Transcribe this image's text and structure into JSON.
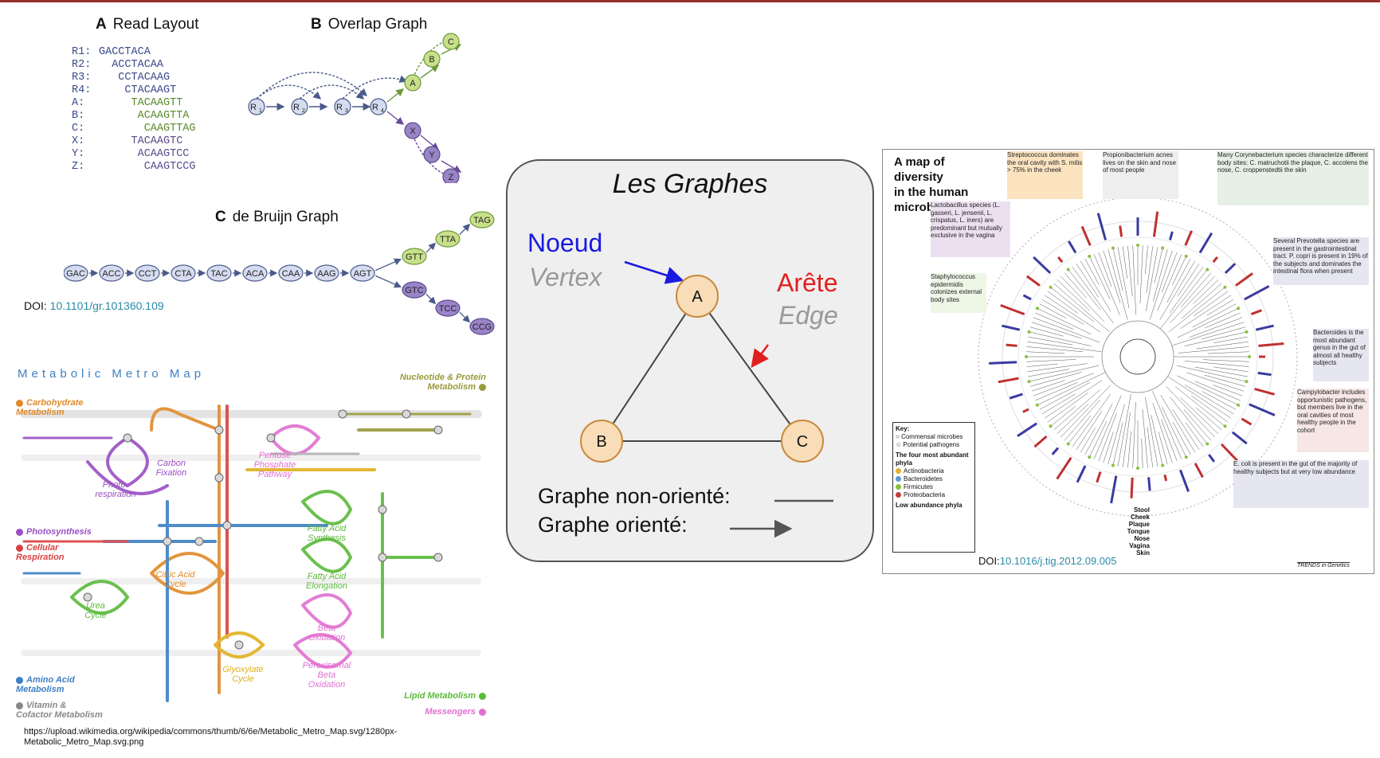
{
  "panel_a": {
    "letter": "A",
    "title": "Read Layout",
    "reads": [
      {
        "key": "R1:",
        "seq": "GACCTACA",
        "indent": 0,
        "color": "#3a4a8a"
      },
      {
        "key": "R2:",
        "seq": "ACCTACAA",
        "indent": 2,
        "color": "#3a4a8a"
      },
      {
        "key": "R3:",
        "seq": "CCTACAAG",
        "indent": 3,
        "color": "#3a4a8a"
      },
      {
        "key": "R4:",
        "seq": "CTACAAGT",
        "indent": 4,
        "color": "#3a4a8a"
      },
      {
        "key": "A:",
        "seq": "TACAAGTT",
        "indent": 5,
        "color": "#5a8a2a"
      },
      {
        "key": "B:",
        "seq": "ACAAGTTA",
        "indent": 6,
        "color": "#5a8a2a"
      },
      {
        "key": "C:",
        "seq": "CAAGTTAG",
        "indent": 7,
        "color": "#5a8a2a"
      },
      {
        "key": "X:",
        "seq": "TACAAGTC",
        "indent": 5,
        "color": "#5a4a8a"
      },
      {
        "key": "Y:",
        "seq": "ACAAGTCC",
        "indent": 6,
        "color": "#5a4a8a"
      },
      {
        "key": "Z:",
        "seq": "CAAGTCCG",
        "indent": 7,
        "color": "#5a4a8a"
      }
    ]
  },
  "panel_b": {
    "letter": "B",
    "title": "Overlap Graph",
    "nodes": [
      "R1",
      "R2",
      "R3",
      "R4",
      "A",
      "B",
      "C",
      "X",
      "Y",
      "Z"
    ]
  },
  "panel_c": {
    "letter": "C",
    "title": "de Bruijn Graph",
    "chain": [
      "GAC",
      "ACC",
      "CCT",
      "CTA",
      "TAC",
      "ACA",
      "CAA",
      "AAG",
      "AGT"
    ],
    "green_branch": [
      "GTT",
      "TTA",
      "TAG"
    ],
    "purple_branch": [
      "GTC",
      "TCC",
      "CCG"
    ]
  },
  "doi_left": {
    "label": "DOI:",
    "value": "10.1101/gr.101360.109"
  },
  "metro": {
    "title": "Metabolic Metro Map",
    "categories_left": [
      {
        "label": "Carbohydrate Metabolism",
        "color": "#e08a2a"
      },
      {
        "label": "Photosynthesis",
        "color": "#9a4fc4"
      },
      {
        "label": "Cellular Respiration",
        "color": "#d94040"
      },
      {
        "label": "Amino Acid Metabolism",
        "color": "#3d7fc4"
      },
      {
        "label": "Vitamin & Cofactor Metabolism",
        "color": "#888888"
      }
    ],
    "categories_right": [
      {
        "label": "Nucleotide & Protein Metabolism",
        "color": "#9a9a3a"
      },
      {
        "label": "Lipid Metabolism",
        "color": "#5aba3a"
      },
      {
        "label": "Messengers",
        "color": "#e070d0"
      }
    ],
    "modules": [
      {
        "label": "Carbon Fixation",
        "color": "#9a4fc4"
      },
      {
        "label": "Photo-respiration",
        "color": "#9a4fc4"
      },
      {
        "label": "Pentose Phosphate Pathway",
        "color": "#e070d0"
      },
      {
        "label": "Citric Acid Cycle",
        "color": "#e08a2a"
      },
      {
        "label": "Urea Cycle",
        "color": "#5aba3a"
      },
      {
        "label": "Fatty Acid Synthesis",
        "color": "#5aba3a"
      },
      {
        "label": "Fatty Acid Elongation",
        "color": "#5aba3a"
      },
      {
        "label": "Beta Oxidation",
        "color": "#e070d0"
      },
      {
        "label": "Peroxisomal Beta Oxidation",
        "color": "#e070d0"
      },
      {
        "label": "Glyoxylate Cycle",
        "color": "#e0b020"
      }
    ],
    "source": "https://upload.wikimedia.org/wikipedia/commons/thumb/6/6e/Metabolic_Metro_Map.svg/1280px-Metabolic_Metro_Map.svg.png"
  },
  "center": {
    "title": "Les Graphes",
    "noeud": "Noeud",
    "vertex": "Vertex",
    "arete": "Arête",
    "edge": "Edge",
    "nodes": [
      "A",
      "B",
      "C"
    ],
    "undirected_label": "Graphe non-orienté:",
    "directed_label": "Graphe orienté:",
    "colors": {
      "noeud": "#1a1ae0",
      "arete": "#e02020",
      "gray_text": "#999999",
      "node_fill": "#f8ddb8",
      "node_stroke": "#c8883a"
    }
  },
  "microbiome": {
    "title": "A map of\ndiversity\nin the human\nmicrobiome",
    "callouts": [
      "Streptococcus dominates the oral cavity with S. mitis > 75% in the cheek",
      "Propionibacterium acnes lives on the skin and nose of most people",
      "Many Corynebacterium species characterize different body sites: C. matruchotii the plaque, C. accolens the nose, C. croppenstedtii the skin",
      "Lactobacillus species (L. gasseri, L. jensenii, L. crispatus, L. iners) are predominant but mutually exclusive in the vagina",
      "Several Prevotella species are present in the gastrointestinal tract. P. copri is present in 19% of the subjects and dominates the intestinal flora when present",
      "Staphylococcus epidermidis colonizes external body sites",
      "Bacteroides is the most abundant genus in the gut of almost all healthy subjects",
      "Campylobacter includes opportunistic pathogens, but members live in the oral cavities of most healthy people in the cohort",
      "E. coli is present in the gut of the majority of healthy subjects but at very low abundance"
    ],
    "key_title": "Key:",
    "key_items": [
      "Commensal microbes",
      "Potential pathogens"
    ],
    "phyla_title": "The four most abundant phyla",
    "phyla": [
      {
        "name": "Actinobacteria",
        "color": "#e0b030"
      },
      {
        "name": "Bacteroidetes",
        "color": "#5a9ad0"
      },
      {
        "name": "Firmicutes",
        "color": "#8ac040"
      },
      {
        "name": "Proteobacteria",
        "color": "#c04040"
      }
    ],
    "low_title": "Low abundance phyla",
    "body_sites": [
      "Stool",
      "Cheek",
      "Plaque",
      "Tongue",
      "Nose",
      "Vagina",
      "Skin"
    ],
    "doi_label": "DOI:",
    "doi_value": "10.1016/j.tig.2012.09.005",
    "journal": "TRENDS in Genetics"
  }
}
